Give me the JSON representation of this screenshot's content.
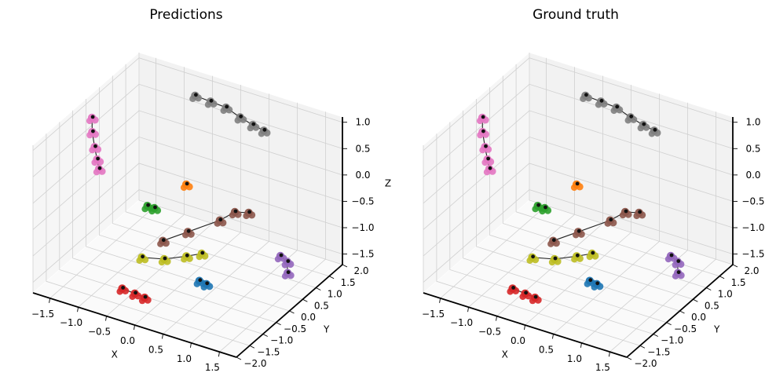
{
  "chart_data": [
    {
      "type": "scatter",
      "projection": "3d",
      "title": "Predictions",
      "xlabel": "X",
      "ylabel": "Y",
      "zlabel": "Z",
      "xticks": [
        "−1.5",
        "−1.0",
        "−0.5",
        "0.0",
        "0.5",
        "1.0",
        "1.5"
      ],
      "yticks": [
        "−2.0",
        "−1.5",
        "−1.0",
        "−0.5",
        "0.0",
        "0.5",
        "1.0",
        "1.5",
        "2.0"
      ],
      "zticks": [
        "−1.5",
        "−1.0",
        "−0.5",
        "0.0",
        "0.5",
        "1.0"
      ],
      "xlim": [
        -1.8,
        1.8
      ],
      "ylim": [
        -2.0,
        2.0
      ],
      "zlim": [
        -1.7,
        1.1
      ],
      "grid": true,
      "series": [
        {
          "color": "#7f7f7f",
          "points": [
            [
              -0.55,
              1.45,
              0.95
            ],
            [
              -0.3,
              1.5,
              0.9
            ],
            [
              -0.05,
              1.55,
              0.85
            ],
            [
              0.2,
              1.55,
              0.75
            ],
            [
              0.4,
              1.6,
              0.65
            ],
            [
              0.55,
              1.7,
              0.55
            ]
          ]
        },
        {
          "color": "#e377c2",
          "points": [
            [
              -1.6,
              -0.2,
              0.9
            ],
            [
              -1.62,
              -0.15,
              0.6
            ],
            [
              -1.6,
              -0.1,
              0.3
            ],
            [
              -1.58,
              -0.05,
              0.05
            ],
            [
              -1.57,
              0.0,
              -0.15
            ]
          ]
        },
        {
          "color": "#2ca02c",
          "points": [
            [
              -0.55,
              -0.35,
              -0.35
            ],
            [
              -0.45,
              -0.3,
              -0.38
            ]
          ]
        },
        {
          "color": "#ff7f0e",
          "points": [
            [
              -0.05,
              0.05,
              0.05
            ]
          ]
        },
        {
          "color": "#8c564b",
          "points": [
            [
              -0.3,
              -0.3,
              -0.95
            ],
            [
              0.05,
              -0.1,
              -0.75
            ],
            [
              0.45,
              0.25,
              -0.55
            ],
            [
              0.6,
              0.5,
              -0.45
            ],
            [
              0.75,
              0.7,
              -0.5
            ]
          ]
        },
        {
          "color": "#bcbd22",
          "points": [
            [
              -0.6,
              -0.45,
              -1.3
            ],
            [
              -0.3,
              -0.25,
              -1.32
            ],
            [
              0.0,
              -0.05,
              -1.25
            ],
            [
              0.2,
              0.1,
              -1.2
            ]
          ]
        },
        {
          "color": "#1f77b4",
          "points": [
            [
              0.3,
              -0.2,
              -1.55
            ],
            [
              0.4,
              -0.15,
              -1.6
            ]
          ]
        },
        {
          "color": "#9467bd",
          "points": [
            [
              1.1,
              1.15,
              -1.4
            ],
            [
              1.2,
              1.2,
              -1.5
            ],
            [
              1.25,
              1.1,
              -1.65
            ]
          ]
        },
        {
          "color": "#d62728",
          "points": [
            [
              -0.55,
              -1.3,
              -1.5
            ],
            [
              -0.35,
              -1.25,
              -1.55
            ],
            [
              -0.2,
              -1.2,
              -1.6
            ]
          ]
        }
      ]
    },
    {
      "type": "scatter",
      "projection": "3d",
      "title": "Ground truth",
      "xlabel": "X",
      "ylabel": "Y",
      "zlabel": "",
      "xticks": [
        "−1.5",
        "−1.0",
        "−0.5",
        "0.0",
        "0.5",
        "1.0",
        "1.5"
      ],
      "yticks": [
        "−2.0",
        "−1.5",
        "−1.0",
        "−0.5",
        "0.0",
        "0.5",
        "1.0",
        "1.5",
        "2.0"
      ],
      "zticks": [
        "−1.5",
        "−1.0",
        "−0.5",
        "0.0",
        "0.5",
        "1.0"
      ],
      "xlim": [
        -1.8,
        1.8
      ],
      "ylim": [
        -2.0,
        2.0
      ],
      "zlim": [
        -1.7,
        1.1
      ],
      "grid": true,
      "series": [
        {
          "color": "#7f7f7f",
          "points": [
            [
              -0.55,
              1.45,
              0.95
            ],
            [
              -0.3,
              1.5,
              0.9
            ],
            [
              -0.05,
              1.55,
              0.85
            ],
            [
              0.2,
              1.55,
              0.75
            ],
            [
              0.4,
              1.6,
              0.65
            ],
            [
              0.55,
              1.7,
              0.55
            ]
          ]
        },
        {
          "color": "#e377c2",
          "points": [
            [
              -1.6,
              -0.2,
              0.9
            ],
            [
              -1.62,
              -0.15,
              0.6
            ],
            [
              -1.6,
              -0.1,
              0.3
            ],
            [
              -1.58,
              -0.05,
              0.05
            ],
            [
              -1.57,
              0.0,
              -0.15
            ]
          ]
        },
        {
          "color": "#2ca02c",
          "points": [
            [
              -0.55,
              -0.35,
              -0.35
            ],
            [
              -0.45,
              -0.3,
              -0.38
            ]
          ]
        },
        {
          "color": "#ff7f0e",
          "points": [
            [
              -0.05,
              0.05,
              0.05
            ]
          ]
        },
        {
          "color": "#8c564b",
          "points": [
            [
              -0.3,
              -0.3,
              -0.95
            ],
            [
              0.05,
              -0.1,
              -0.75
            ],
            [
              0.45,
              0.25,
              -0.55
            ],
            [
              0.6,
              0.5,
              -0.45
            ],
            [
              0.75,
              0.7,
              -0.5
            ]
          ]
        },
        {
          "color": "#bcbd22",
          "points": [
            [
              -0.6,
              -0.45,
              -1.3
            ],
            [
              -0.3,
              -0.25,
              -1.32
            ],
            [
              0.0,
              -0.05,
              -1.25
            ],
            [
              0.2,
              0.1,
              -1.2
            ]
          ]
        },
        {
          "color": "#1f77b4",
          "points": [
            [
              0.3,
              -0.2,
              -1.55
            ],
            [
              0.4,
              -0.15,
              -1.6
            ]
          ]
        },
        {
          "color": "#9467bd",
          "points": [
            [
              1.1,
              1.15,
              -1.4
            ],
            [
              1.2,
              1.2,
              -1.5
            ],
            [
              1.25,
              1.1,
              -1.65
            ]
          ]
        },
        {
          "color": "#d62728",
          "points": [
            [
              -0.55,
              -1.3,
              -1.5
            ],
            [
              -0.35,
              -1.25,
              -1.55
            ],
            [
              -0.2,
              -1.2,
              -1.6
            ]
          ]
        }
      ]
    }
  ]
}
